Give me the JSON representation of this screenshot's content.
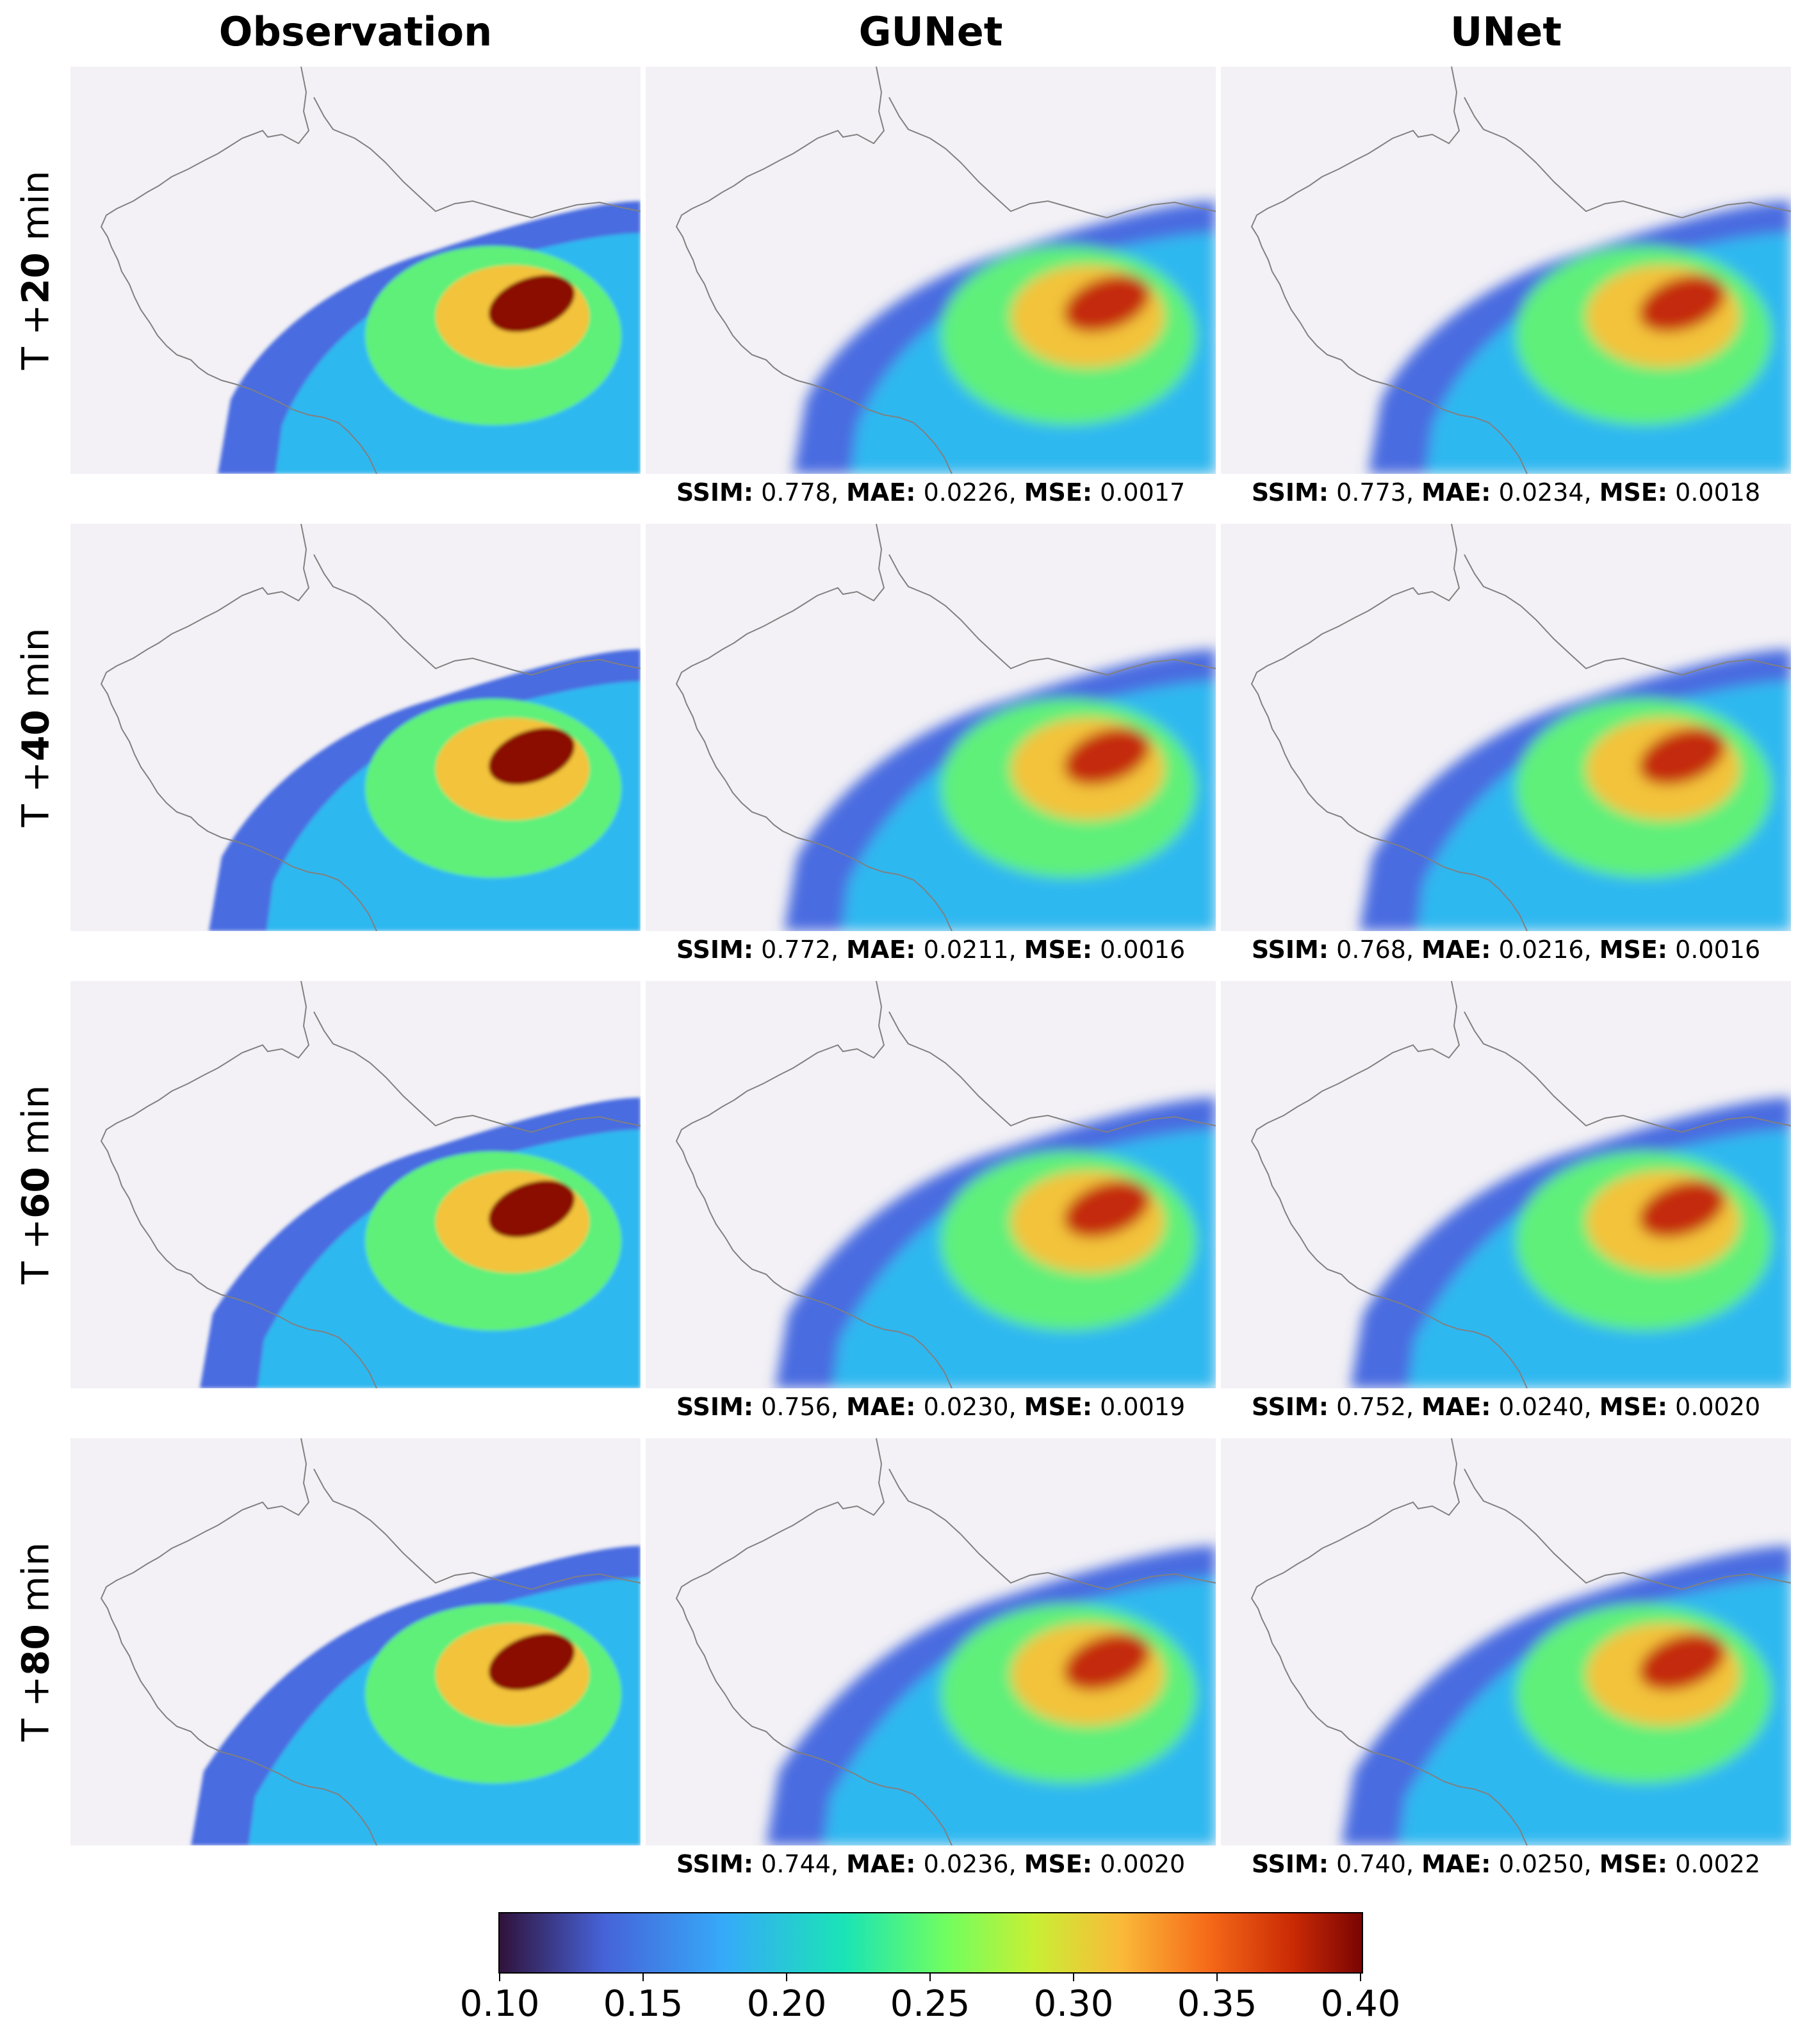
{
  "columns": [
    "Observation",
    "GUNet",
    "UNet"
  ],
  "rows": [
    {
      "label_prefix": "T +",
      "label_value": "20",
      "label_suffix": " min",
      "gunet": {
        "ssim": "0.778",
        "mae": "0.0226",
        "mse": "0.0017"
      },
      "unet": {
        "ssim": "0.773",
        "mae": "0.0234",
        "mse": "0.0018"
      }
    },
    {
      "label_prefix": "T +",
      "label_value": "40",
      "label_suffix": " min",
      "gunet": {
        "ssim": "0.772",
        "mae": "0.0211",
        "mse": "0.0016"
      },
      "unet": {
        "ssim": "0.768",
        "mae": "0.0216",
        "mse": "0.0016"
      }
    },
    {
      "label_prefix": "T +",
      "label_value": "60",
      "label_suffix": " min",
      "gunet": {
        "ssim": "0.756",
        "mae": "0.0230",
        "mse": "0.0019"
      },
      "unet": {
        "ssim": "0.752",
        "mae": "0.0240",
        "mse": "0.0020"
      }
    },
    {
      "label_prefix": "T +",
      "label_value": "80",
      "label_suffix": " min",
      "gunet": {
        "ssim": "0.744",
        "mae": "0.0236",
        "mse": "0.0020"
      },
      "unet": {
        "ssim": "0.740",
        "mae": "0.0250",
        "mse": "0.0022"
      }
    }
  ],
  "metric_labels": {
    "ssim": "SSIM",
    "mae": "MAE",
    "mse": "MSE"
  },
  "colorbar": {
    "ticks": [
      "0.10",
      "0.15",
      "0.20",
      "0.25",
      "0.30",
      "0.35",
      "0.40"
    ],
    "range": [
      0.1,
      0.4
    ],
    "colormap": "turbo"
  },
  "colors": {
    "background": "#f3f1f5",
    "border": "#808080"
  }
}
